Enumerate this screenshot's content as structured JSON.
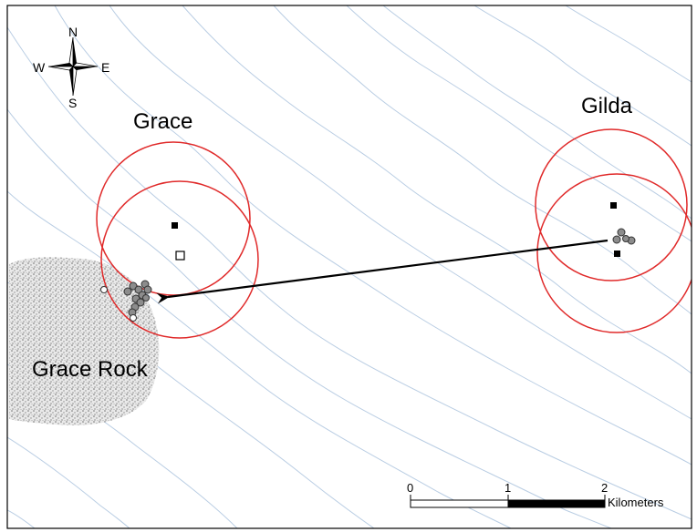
{
  "compass": {
    "north": "N",
    "south": "S",
    "east": "E",
    "west": "W"
  },
  "places": {
    "site_a": "Grace",
    "site_b": "Gilda",
    "reef": "Grace Rock"
  },
  "scale_bar": {
    "ticks": [
      "0",
      "1",
      "2"
    ],
    "unit": "Kilometers"
  },
  "colors": {
    "range_circle": "#e02a2a",
    "contour": "#b9cde3",
    "reef_texture": "#8a8a8a",
    "point_fill": "#8c8c8c",
    "frame": "#000000"
  }
}
